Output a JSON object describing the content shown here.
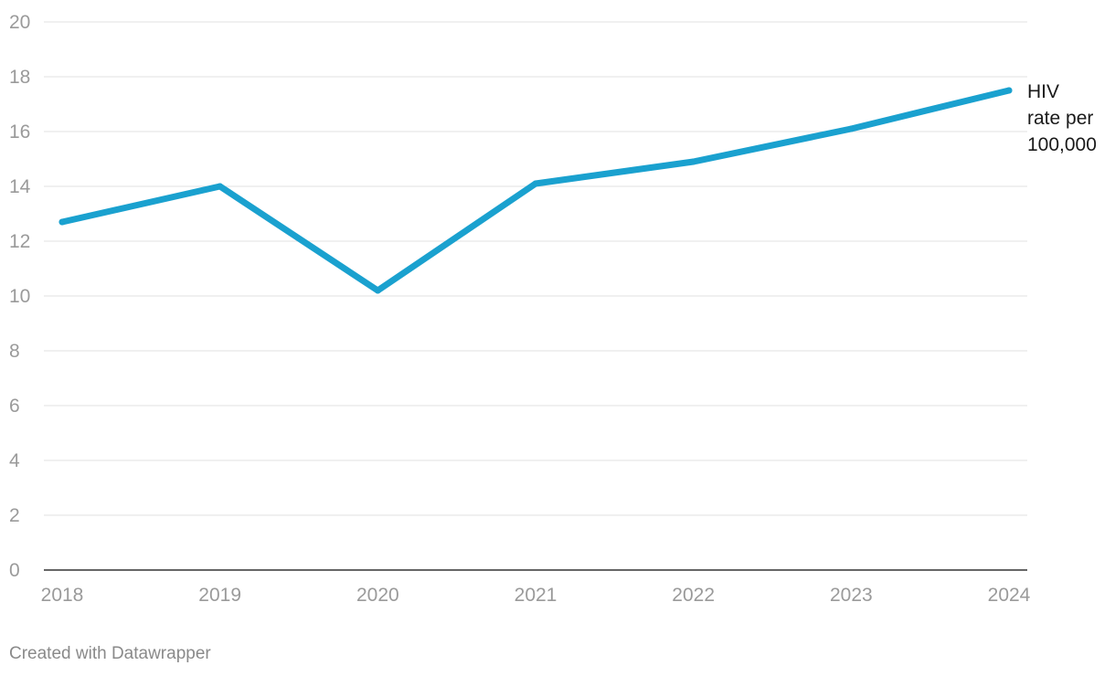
{
  "chart_data": {
    "type": "line",
    "x": [
      "2018",
      "2019",
      "2020",
      "2021",
      "2022",
      "2023",
      "2024"
    ],
    "series": [
      {
        "name": "HIV rate per 100,000",
        "label_lines": [
          "HIV",
          "rate per",
          "100,000"
        ],
        "values": [
          12.7,
          14.0,
          10.2,
          14.1,
          14.9,
          16.1,
          17.5
        ],
        "color": "#1aa1cf"
      }
    ],
    "ylim": [
      0,
      20
    ],
    "yticks": [
      0,
      2,
      4,
      6,
      8,
      10,
      12,
      14,
      16,
      18,
      20
    ],
    "grid": true,
    "title": "",
    "xlabel": "",
    "ylabel": ""
  },
  "credit": "Created with Datawrapper"
}
